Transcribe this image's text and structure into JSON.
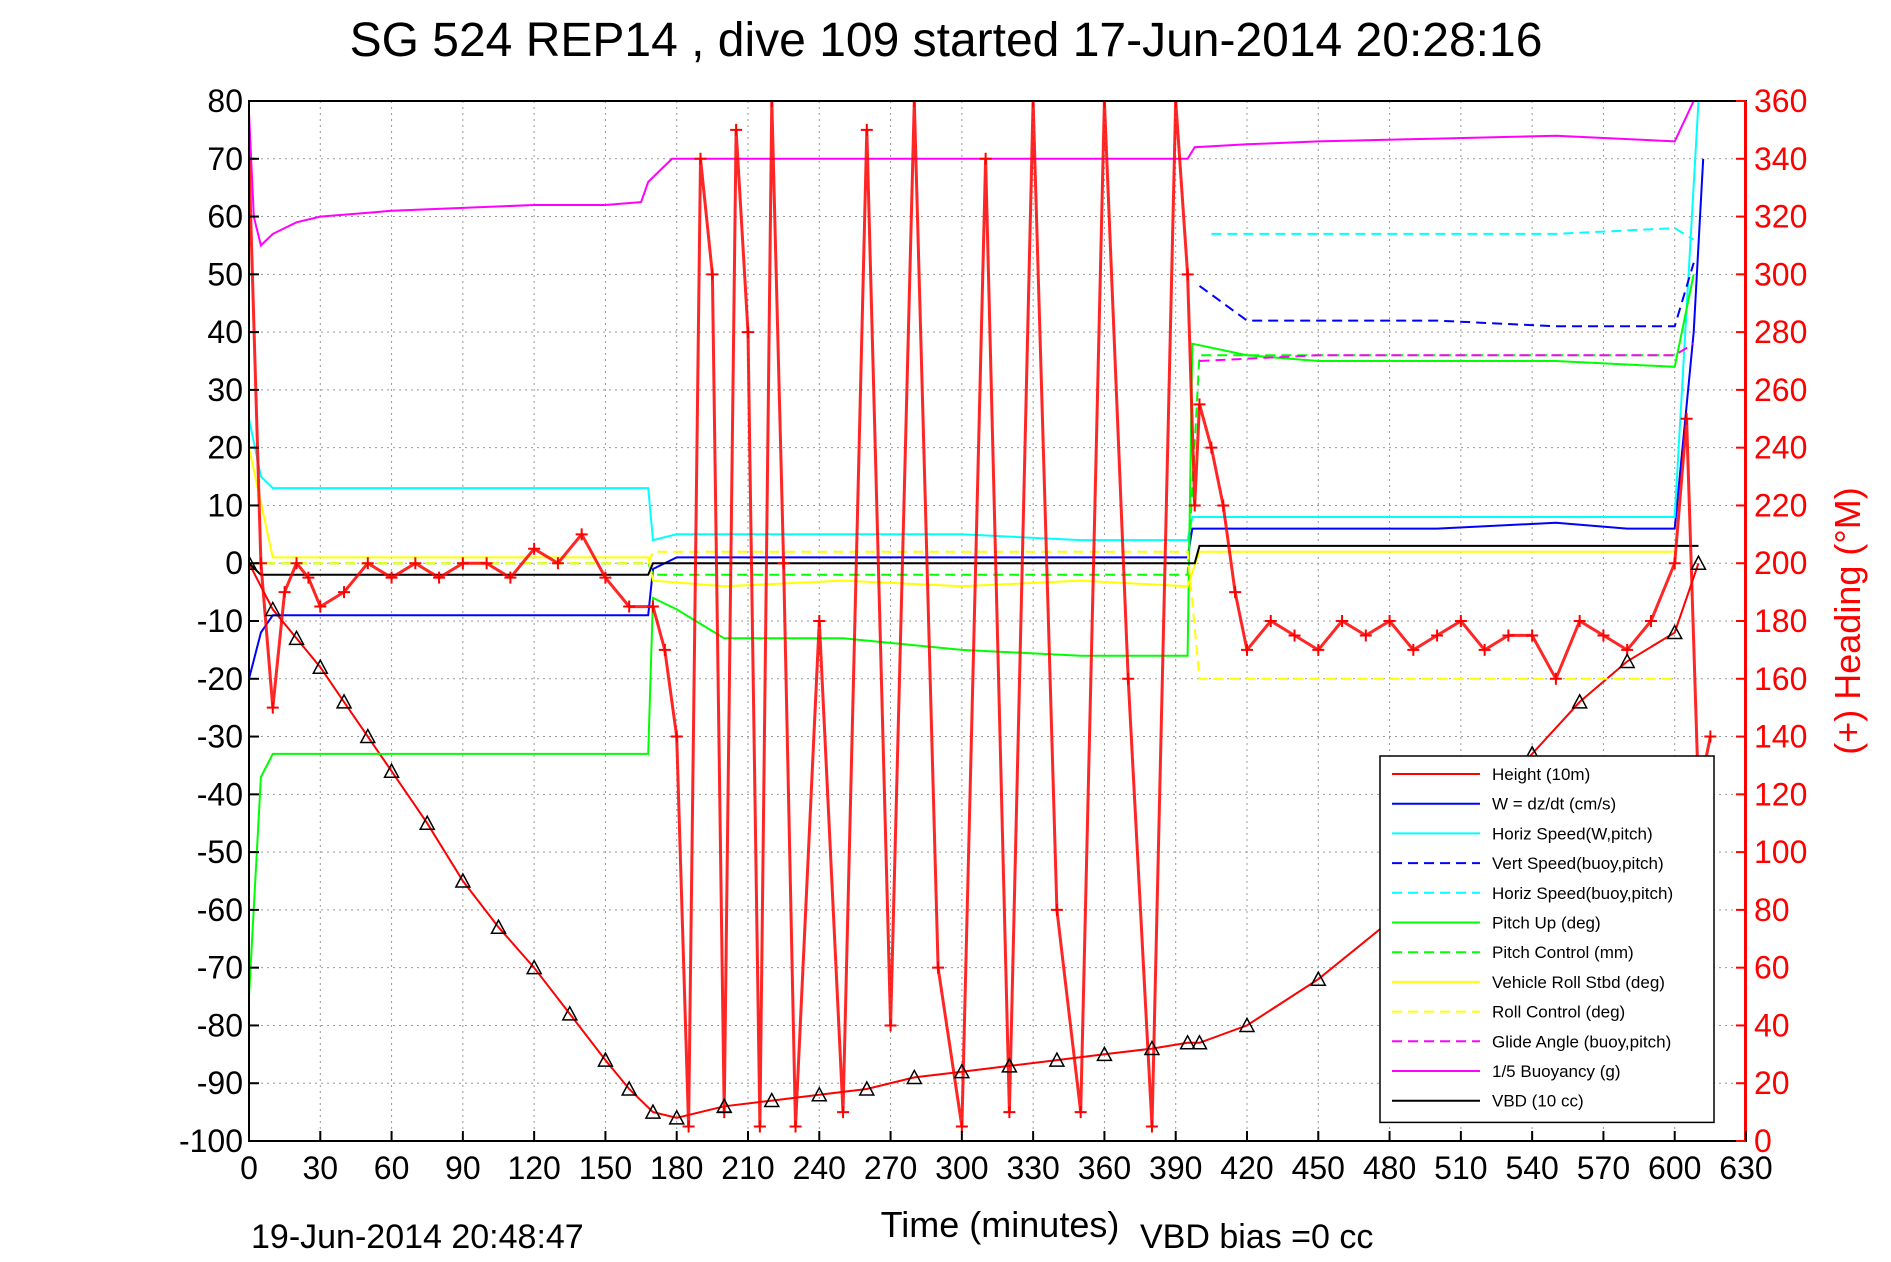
{
  "title": "SG 524   REP14  , dive 109 started 17-Jun-2014 20:28:16",
  "footer_left": "19-Jun-2014 20:48:47",
  "footer_right": "VBD bias =0 cc",
  "chart_data": {
    "type": "line",
    "title": "SG 524   REP14  , dive 109 started 17-Jun-2014 20:28:16",
    "xlabel": "Time (minutes)",
    "ylabel": "",
    "y2label": "(+) Heading (°M)",
    "xlim": [
      0,
      630
    ],
    "ylim": [
      -100,
      80
    ],
    "y2lim": [
      0,
      360
    ],
    "grid": true,
    "legend_position": "bottom-right",
    "xticks": [
      "0",
      "30",
      "60",
      "90",
      "120",
      "150",
      "180",
      "210",
      "240",
      "270",
      "300",
      "330",
      "360",
      "390",
      "420",
      "450",
      "480",
      "510",
      "540",
      "570",
      "600",
      "630"
    ],
    "yticks": [
      "80",
      "70",
      "60",
      "50",
      "40",
      "30",
      "20",
      "10",
      "0",
      "-10",
      "-20",
      "-30",
      "-40",
      "-50",
      "-60",
      "-70",
      "-80",
      "-90",
      "-100"
    ],
    "y2ticks": [
      "360",
      "340",
      "320",
      "300",
      "280",
      "260",
      "240",
      "220",
      "200",
      "180",
      "160",
      "140",
      "120",
      "100",
      "80",
      "60",
      "40",
      "20",
      "0"
    ],
    "series": [
      {
        "name": "Height (10m)",
        "color": "#ff0000",
        "style": "solid",
        "x": [
          0,
          10,
          20,
          30,
          40,
          50,
          60,
          75,
          90,
          105,
          120,
          135,
          150,
          160,
          170,
          180,
          200,
          220,
          240,
          260,
          280,
          300,
          320,
          340,
          360,
          380,
          395,
          400,
          420,
          450,
          480,
          510,
          540,
          560,
          580,
          600,
          610
        ],
        "y": [
          0,
          -8,
          -13,
          -18,
          -24,
          -30,
          -36,
          -45,
          -55,
          -63,
          -70,
          -78,
          -86,
          -91,
          -95,
          -96,
          -94,
          -93,
          -92,
          -91,
          -89,
          -88,
          -87,
          -86,
          -85,
          -84,
          -83,
          -83,
          -80,
          -72,
          -62,
          -47,
          -33,
          -24,
          -17,
          -12,
          0
        ]
      },
      {
        "name": "W = dz/dt (cm/s)",
        "color": "#0000ff",
        "style": "solid",
        "x": [
          0,
          5,
          10,
          20,
          40,
          60,
          90,
          120,
          150,
          168,
          170,
          180,
          200,
          250,
          300,
          350,
          395,
          397,
          420,
          450,
          500,
          550,
          580,
          600,
          608,
          612
        ],
        "y": [
          -20,
          -12,
          -9,
          -9,
          -9,
          -9,
          -9,
          -9,
          -9,
          -9,
          -1,
          1,
          1,
          1,
          1,
          1,
          1,
          6,
          6,
          6,
          6,
          7,
          6,
          6,
          40,
          70
        ]
      },
      {
        "name": "Horiz Speed(W,pitch)",
        "color": "#00ffff",
        "style": "solid",
        "x": [
          0,
          5,
          10,
          30,
          60,
          90,
          120,
          150,
          168,
          170,
          180,
          200,
          250,
          300,
          350,
          395,
          397,
          420,
          450,
          500,
          550,
          580,
          600,
          610
        ],
        "y": [
          25,
          15,
          13,
          13,
          13,
          13,
          13,
          13,
          13,
          4,
          5,
          5,
          5,
          5,
          4,
          4,
          8,
          8,
          8,
          8,
          8,
          8,
          8,
          80
        ]
      },
      {
        "name": "Vert Speed(buoy,pitch)",
        "color": "#0000ff",
        "style": "dashed",
        "x": [
          400,
          420,
          450,
          500,
          550,
          580,
          600,
          608
        ],
        "y": [
          48,
          42,
          42,
          42,
          41,
          41,
          41,
          52
        ]
      },
      {
        "name": "Horiz Speed(buoy,pitch)",
        "color": "#00ffff",
        "style": "dashed",
        "x": [
          405,
          450,
          500,
          550,
          600,
          608
        ],
        "y": [
          57,
          57,
          57,
          57,
          58,
          56
        ]
      },
      {
        "name": "Pitch Up (deg)",
        "color": "#00ff00",
        "style": "solid",
        "x": [
          0,
          5,
          10,
          30,
          60,
          90,
          120,
          150,
          168,
          170,
          180,
          200,
          250,
          300,
          350,
          395,
          397,
          420,
          450,
          500,
          550,
          600,
          608
        ],
        "y": [
          -75,
          -37,
          -33,
          -33,
          -33,
          -33,
          -33,
          -33,
          -33,
          -6,
          -8,
          -13,
          -13,
          -15,
          -16,
          -16,
          38,
          36,
          35,
          35,
          35,
          34,
          50
        ]
      },
      {
        "name": "Pitch Control (mm)",
        "color": "#00ff00",
        "style": "dashed",
        "x": [
          0,
          168,
          170,
          200,
          250,
          300,
          350,
          395,
          400,
          450,
          500,
          550,
          600
        ],
        "y": [
          0,
          0,
          -2,
          -2,
          -2,
          -2,
          -2,
          -2,
          36,
          36,
          36,
          36,
          36
        ]
      },
      {
        "name": "Vehicle Roll Stbd (deg)",
        "color": "#ffff00",
        "style": "solid",
        "x": [
          0,
          10,
          168,
          170,
          200,
          250,
          300,
          350,
          395,
          400,
          450,
          500,
          550,
          600
        ],
        "y": [
          20,
          1,
          1,
          -3,
          -4,
          -3,
          -4,
          -3,
          -4,
          2,
          2,
          2,
          2,
          2
        ]
      },
      {
        "name": "Roll Control (deg)",
        "color": "#ffff00",
        "style": "dashed",
        "x": [
          0,
          168,
          170,
          200,
          250,
          300,
          350,
          395,
          400,
          450,
          500,
          550,
          600
        ],
        "y": [
          0,
          0,
          2,
          2,
          2,
          2,
          2,
          2,
          -20,
          -20,
          -20,
          -20,
          -20
        ]
      },
      {
        "name": "Glide Angle (buoy,pitch)",
        "color": "#ff00ff",
        "style": "dashed",
        "x": [
          400,
          450,
          500,
          550,
          600,
          608
        ],
        "y": [
          35,
          36,
          36,
          36,
          36,
          38
        ]
      },
      {
        "name": "1/5 Buoyancy (g)",
        "color": "#ff00ff",
        "style": "solid",
        "x": [
          0,
          2,
          5,
          10,
          20,
          30,
          60,
          90,
          120,
          150,
          165,
          168,
          178,
          200,
          250,
          300,
          350,
          395,
          398,
          420,
          450,
          500,
          550,
          600,
          608
        ],
        "y": [
          78,
          60,
          55,
          57,
          59,
          60,
          61,
          61.5,
          62,
          62,
          62.5,
          66,
          70,
          70,
          70,
          70,
          70,
          70,
          72,
          72.5,
          73,
          73.5,
          74,
          73,
          80
        ]
      },
      {
        "name": "VBD (10 cc)",
        "color": "#000000",
        "style": "solid",
        "x": [
          0,
          5,
          168,
          170,
          398,
          400,
          600,
          610
        ],
        "y": [
          0,
          -2,
          -2,
          0,
          0,
          3,
          3,
          3
        ]
      }
    ],
    "heading_series": {
      "name": "(+) Heading (°M)",
      "axis": "right",
      "color": "#ff0000",
      "marker": "+",
      "x": [
        0,
        5,
        10,
        15,
        20,
        25,
        30,
        40,
        50,
        60,
        70,
        80,
        90,
        100,
        110,
        120,
        130,
        140,
        150,
        160,
        170,
        175,
        180,
        185,
        190,
        195,
        200,
        205,
        210,
        215,
        220,
        225,
        230,
        240,
        250,
        260,
        270,
        280,
        290,
        300,
        310,
        320,
        330,
        340,
        350,
        360,
        370,
        380,
        390,
        395,
        398,
        400,
        405,
        410,
        415,
        420,
        430,
        440,
        450,
        460,
        470,
        480,
        490,
        500,
        510,
        520,
        530,
        540,
        550,
        560,
        570,
        580,
        590,
        600,
        605,
        610,
        615
      ],
      "y": [
        340,
        200,
        150,
        190,
        200,
        195,
        185,
        190,
        200,
        195,
        200,
        195,
        200,
        200,
        195,
        205,
        200,
        210,
        195,
        185,
        185,
        170,
        140,
        5,
        340,
        300,
        10,
        350,
        280,
        5,
        360,
        200,
        5,
        180,
        10,
        350,
        40,
        360,
        60,
        5,
        340,
        10,
        360,
        80,
        10,
        360,
        160,
        5,
        360,
        300,
        220,
        255,
        240,
        220,
        190,
        170,
        180,
        175,
        170,
        180,
        175,
        180,
        170,
        175,
        180,
        170,
        175,
        175,
        160,
        180,
        175,
        170,
        180,
        200,
        250,
        120,
        140
      ]
    }
  }
}
